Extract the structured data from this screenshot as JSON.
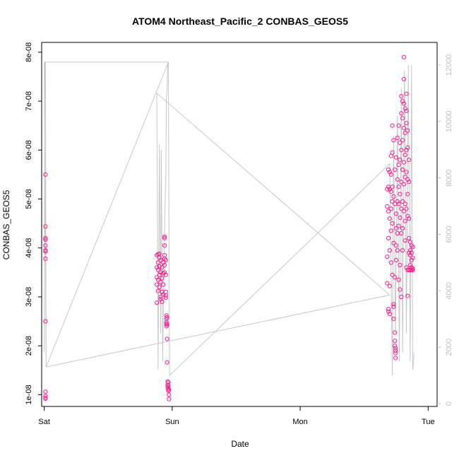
{
  "chart_data": {
    "type": "scatter",
    "title": "ATOM4 Northeast_Pacific_2 CONBAS_GEOS5",
    "xlabel": "Date",
    "ylabel": "CONBAS_GEOS5",
    "x_ticks": [
      "Sat",
      "Sun",
      "Mon",
      "Tue"
    ],
    "x_range_days": [
      -0.02,
      3.07
    ],
    "y_ticks": [
      "1e-08",
      "2e-08",
      "3e-08",
      "4e-08",
      "5e-08",
      "6e-08",
      "7e-08",
      "8e-08"
    ],
    "y_tick_values": [
      1e-08,
      2e-08,
      3e-08,
      4e-08,
      5e-08,
      6e-08,
      7e-08,
      8e-08
    ],
    "ylim": [
      7.6e-09,
      8.2e-08
    ],
    "y2_ticks": [
      "0",
      "2000",
      "4000",
      "6000",
      "8000",
      "10000",
      "12000"
    ],
    "y2_tick_values": [
      0,
      2000,
      4000,
      6000,
      8000,
      10000,
      12000
    ],
    "y2lim": [
      -100,
      12800
    ],
    "grid": false,
    "colors": {
      "points": "#ff1a8c",
      "altitude_line": "#c8c8c8",
      "axis": "#000000"
    },
    "series": [
      {
        "marker": "circle",
        "points": [
          [
            0.01,
            5.5e-08
          ],
          [
            0.01,
            4.44e-08
          ],
          [
            0.01,
            4.2e-08
          ],
          [
            0.01,
            4.17e-08
          ],
          [
            0.01,
            4.05e-08
          ],
          [
            0.01,
            3.95e-08
          ],
          [
            0.01,
            3.93e-08
          ],
          [
            0.01,
            3.78e-08
          ],
          [
            0.01,
            2.5e-08
          ],
          [
            0.01,
            1.06e-08
          ],
          [
            0.01,
            9.7e-09
          ],
          [
            0.01,
            9.3e-09
          ],
          [
            0.01,
            9.2e-09
          ],
          [
            0.88,
            3.85e-08
          ],
          [
            0.88,
            3.6e-08
          ],
          [
            0.88,
            3.4e-08
          ],
          [
            0.88,
            3.25e-08
          ],
          [
            0.88,
            2.88e-08
          ],
          [
            0.89,
            3.87e-08
          ],
          [
            0.89,
            3.7e-08
          ],
          [
            0.89,
            3.55e-08
          ],
          [
            0.89,
            3.35e-08
          ],
          [
            0.89,
            3.12e-08
          ],
          [
            0.9,
            3.88e-08
          ],
          [
            0.9,
            3.8e-08
          ],
          [
            0.9,
            3.62e-08
          ],
          [
            0.9,
            3.45e-08
          ],
          [
            0.9,
            3.2e-08
          ],
          [
            0.91,
            3.75e-08
          ],
          [
            0.91,
            3.5e-08
          ],
          [
            0.91,
            3.3e-08
          ],
          [
            0.91,
            3e-08
          ],
          [
            0.91,
            2.95e-08
          ],
          [
            0.92,
            3.6e-08
          ],
          [
            0.92,
            3.38e-08
          ],
          [
            0.92,
            3.1e-08
          ],
          [
            0.92,
            2.9e-08
          ],
          [
            0.93,
            3.7e-08
          ],
          [
            0.93,
            3.48e-08
          ],
          [
            0.93,
            3.25e-08
          ],
          [
            0.93,
            3.05e-08
          ],
          [
            0.94,
            4.23e-08
          ],
          [
            0.94,
            4.2e-08
          ],
          [
            0.94,
            4.05e-08
          ],
          [
            0.94,
            3.85e-08
          ],
          [
            0.94,
            3.78e-08
          ],
          [
            0.94,
            3.65e-08
          ],
          [
            0.94,
            3.5e-08
          ],
          [
            0.95,
            3.75e-08
          ],
          [
            0.95,
            3.45e-08
          ],
          [
            0.95,
            3.1e-08
          ],
          [
            0.95,
            3.03e-08
          ],
          [
            0.95,
            2.98e-08
          ],
          [
            0.955,
            2.62e-08
          ],
          [
            0.955,
            2.55e-08
          ],
          [
            0.955,
            2.48e-08
          ],
          [
            0.955,
            2.45e-08
          ],
          [
            0.955,
            2.4e-08
          ],
          [
            0.96,
            2.58e-08
          ],
          [
            0.96,
            2.43e-08
          ],
          [
            0.96,
            2.14e-08
          ],
          [
            0.96,
            1.66e-08
          ],
          [
            0.965,
            1.27e-08
          ],
          [
            0.965,
            1.2e-08
          ],
          [
            0.965,
            1.15e-08
          ],
          [
            0.97,
            1.25e-08
          ],
          [
            0.97,
            1.18e-08
          ],
          [
            0.97,
            1.12e-08
          ],
          [
            0.97,
            1.08e-08
          ],
          [
            0.975,
            1.1e-08
          ],
          [
            0.975,
            1e-08
          ],
          [
            0.975,
            9.1e-09
          ],
          [
            2.68,
            5.2e-08
          ],
          [
            2.68,
            4.85e-08
          ],
          [
            2.68,
            3.82e-08
          ],
          [
            2.68,
            3.28e-08
          ],
          [
            2.69,
            5.6e-08
          ],
          [
            2.69,
            5.25e-08
          ],
          [
            2.69,
            4.75e-08
          ],
          [
            2.69,
            4.2e-08
          ],
          [
            2.69,
            2.75e-08
          ],
          [
            2.69,
            2.7e-08
          ],
          [
            2.7,
            5.55e-08
          ],
          [
            2.7,
            5.2e-08
          ],
          [
            2.7,
            4.6e-08
          ],
          [
            2.7,
            3.95e-08
          ],
          [
            2.7,
            3.22e-08
          ],
          [
            2.7,
            2.65e-08
          ],
          [
            2.71,
            5.88e-08
          ],
          [
            2.71,
            5.5e-08
          ],
          [
            2.71,
            5.15e-08
          ],
          [
            2.71,
            4.8e-08
          ],
          [
            2.71,
            4.35e-08
          ],
          [
            2.71,
            3.7e-08
          ],
          [
            2.72,
            6.5e-08
          ],
          [
            2.72,
            5.95e-08
          ],
          [
            2.72,
            5.25e-08
          ],
          [
            2.72,
            4.95e-08
          ],
          [
            2.72,
            4.5e-08
          ],
          [
            2.72,
            3.45e-08
          ],
          [
            2.73,
            6.2e-08
          ],
          [
            2.73,
            5.05e-08
          ],
          [
            2.73,
            4.1e-08
          ],
          [
            2.73,
            2.85e-08
          ],
          [
            2.73,
            2.8e-08
          ],
          [
            2.73,
            2.55e-08
          ],
          [
            2.74,
            5.6e-08
          ],
          [
            2.74,
            4.9e-08
          ],
          [
            2.74,
            3.4e-08
          ],
          [
            2.74,
            2.27e-08
          ],
          [
            2.74,
            2.1e-08
          ],
          [
            2.74,
            2e-08
          ],
          [
            2.745,
            1.95e-08
          ],
          [
            2.745,
            1.9e-08
          ],
          [
            2.745,
            1.85e-08
          ],
          [
            2.745,
            1.75e-08
          ],
          [
            2.75,
            5.85e-08
          ],
          [
            2.75,
            4.7e-08
          ],
          [
            2.75,
            4.4e-08
          ],
          [
            2.75,
            4.05e-08
          ],
          [
            2.75,
            3.75e-08
          ],
          [
            2.76,
            6.25e-08
          ],
          [
            2.76,
            5.4e-08
          ],
          [
            2.76,
            4.95e-08
          ],
          [
            2.76,
            4.3e-08
          ],
          [
            2.76,
            3.95e-08
          ],
          [
            2.77,
            6.5e-08
          ],
          [
            2.77,
            5.7e-08
          ],
          [
            2.77,
            5.25e-08
          ],
          [
            2.77,
            4.9e-08
          ],
          [
            2.77,
            4.45e-08
          ],
          [
            2.77,
            3.35e-08
          ],
          [
            2.78,
            6.15e-08
          ],
          [
            2.78,
            5.8e-08
          ],
          [
            2.78,
            5.1e-08
          ],
          [
            2.78,
            4.62e-08
          ],
          [
            2.78,
            3.65e-08
          ],
          [
            2.78,
            3.15e-08
          ],
          [
            2.79,
            7.1e-08
          ],
          [
            2.79,
            6.75e-08
          ],
          [
            2.79,
            6e-08
          ],
          [
            2.79,
            5.35e-08
          ],
          [
            2.79,
            4.8e-08
          ],
          [
            2.79,
            4.3e-08
          ],
          [
            2.79,
            3e-08
          ],
          [
            2.8,
            7e-08
          ],
          [
            2.8,
            6.65e-08
          ],
          [
            2.8,
            6.2e-08
          ],
          [
            2.8,
            5.6e-08
          ],
          [
            2.8,
            4.95e-08
          ],
          [
            2.8,
            4.4e-08
          ],
          [
            2.8,
            3.95e-08
          ],
          [
            2.81,
            7.9e-08
          ],
          [
            2.81,
            7.45e-08
          ],
          [
            2.81,
            6.95e-08
          ],
          [
            2.81,
            6.45e-08
          ],
          [
            2.81,
            5.75e-08
          ],
          [
            2.81,
            5.3e-08
          ],
          [
            2.81,
            4.75e-08
          ],
          [
            2.82,
            6.85e-08
          ],
          [
            2.82,
            6.35e-08
          ],
          [
            2.82,
            5.9e-08
          ],
          [
            2.82,
            5.45e-08
          ],
          [
            2.82,
            4.9e-08
          ],
          [
            2.82,
            4.55e-08
          ],
          [
            2.82,
            4.15e-08
          ],
          [
            2.83,
            7.15e-08
          ],
          [
            2.83,
            6.8e-08
          ],
          [
            2.83,
            6.55e-08
          ],
          [
            2.83,
            6e-08
          ],
          [
            2.83,
            5.55e-08
          ],
          [
            2.83,
            4.8e-08
          ],
          [
            2.83,
            3.6e-08
          ],
          [
            2.84,
            6.4e-08
          ],
          [
            2.84,
            6.05e-08
          ],
          [
            2.84,
            5.4e-08
          ],
          [
            2.84,
            5.1e-08
          ],
          [
            2.84,
            4.65e-08
          ],
          [
            2.84,
            3.55e-08
          ],
          [
            2.84,
            3.02e-08
          ],
          [
            2.85,
            5.8e-08
          ],
          [
            2.85,
            5.35e-08
          ],
          [
            2.85,
            4.6e-08
          ],
          [
            2.85,
            4.2e-08
          ],
          [
            2.85,
            3.9e-08
          ],
          [
            2.85,
            3.55e-08
          ],
          [
            2.86,
            4.12e-08
          ],
          [
            2.86,
            3.95e-08
          ],
          [
            2.86,
            3.85e-08
          ],
          [
            2.86,
            3.65e-08
          ],
          [
            2.86,
            3.55e-08
          ],
          [
            2.87,
            4.05e-08
          ],
          [
            2.87,
            3.9e-08
          ],
          [
            2.87,
            3.75e-08
          ],
          [
            2.87,
            3.6e-08
          ],
          [
            2.87,
            3.55e-08
          ],
          [
            2.88,
            4.02e-08
          ],
          [
            2.88,
            3.8e-08
          ],
          [
            2.88,
            3.58e-08
          ],
          [
            2.88,
            3.55e-08
          ]
        ]
      },
      {
        "axis": "right",
        "line": [
          [
            0.0,
            1800
          ],
          [
            0.005,
            12100
          ],
          [
            0.01,
            12100
          ],
          [
            0.015,
            1300
          ],
          [
            0.0,
            12100
          ],
          [
            0.97,
            12100
          ],
          [
            0.015,
            1300
          ],
          [
            2.7,
            3850
          ],
          [
            0.88,
            11000
          ],
          [
            0.89,
            1200
          ],
          [
            0.9,
            9200
          ],
          [
            0.91,
            2500
          ],
          [
            0.915,
            9000
          ],
          [
            0.925,
            1500
          ],
          [
            0.94,
            6200
          ],
          [
            0.95,
            8000
          ],
          [
            0.955,
            10800
          ],
          [
            0.96,
            11200
          ],
          [
            0.965,
            12100
          ],
          [
            0.97,
            12100
          ],
          [
            0.975,
            6000
          ],
          [
            0.98,
            1000
          ],
          [
            2.7,
            8500
          ],
          [
            2.72,
            1000
          ],
          [
            2.73,
            9500
          ],
          [
            2.745,
            2500
          ],
          [
            2.76,
            10200
          ],
          [
            2.775,
            1500
          ],
          [
            2.79,
            11200
          ],
          [
            2.8,
            1800
          ],
          [
            2.815,
            11800
          ],
          [
            2.83,
            2500
          ],
          [
            2.845,
            12000
          ],
          [
            2.86,
            1500
          ],
          [
            2.87,
            12000
          ],
          [
            2.88,
            1200
          ],
          [
            2.89,
            1800
          ]
        ]
      }
    ]
  }
}
